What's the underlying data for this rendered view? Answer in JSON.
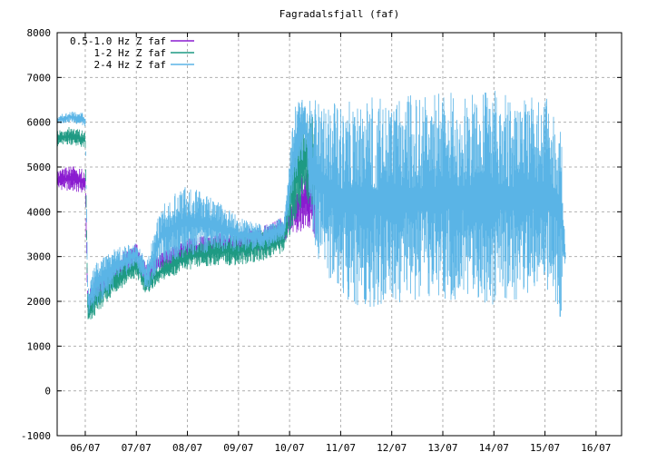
{
  "chart_data": {
    "type": "line",
    "title": "Fagradalsfjall (faf)",
    "xlabel": "",
    "ylabel": "",
    "x_ticks": [
      "06/07",
      "07/07",
      "08/07",
      "09/07",
      "10/07",
      "11/07",
      "12/07",
      "13/07",
      "14/07",
      "15/07",
      "16/07"
    ],
    "y_ticks": [
      -1000,
      0,
      1000,
      2000,
      3000,
      4000,
      5000,
      6000,
      7000,
      8000
    ],
    "xlim": [
      -0.55,
      10.5
    ],
    "ylim": [
      -1000,
      8000
    ],
    "grid": true,
    "legend_position": "top-left",
    "series": [
      {
        "name": "0.5-1.0 Hz Z faf",
        "color": "#8a1bd0",
        "x": [
          -0.55,
          -0.3,
          0,
          0.05,
          0.2,
          0.6,
          1.0,
          1.2,
          1.5,
          2.0,
          2.5,
          3.0,
          3.5,
          3.9,
          4.1,
          4.3,
          4.5
        ],
        "lo": [
          4500,
          4450,
          4400,
          1650,
          1900,
          2500,
          2800,
          2350,
          2700,
          2900,
          3000,
          3000,
          3100,
          3300,
          3500,
          3600,
          3400
        ],
        "hi": [
          4900,
          5050,
          4950,
          2200,
          2500,
          3000,
          3300,
          2800,
          3100,
          3400,
          3500,
          3600,
          3700,
          3900,
          4600,
          5000,
          4800
        ]
      },
      {
        "name": "1-2 Hz Z faf",
        "color": "#1e9a83",
        "x": [
          -0.55,
          -0.3,
          0,
          0.05,
          0.2,
          0.6,
          1.0,
          1.2,
          1.5,
          2.0,
          2.5,
          3.0,
          3.5,
          3.9,
          4.1,
          4.3,
          4.5
        ],
        "lo": [
          5450,
          5500,
          5400,
          1400,
          1700,
          2200,
          2500,
          2150,
          2450,
          2700,
          2800,
          2800,
          2900,
          3100,
          3700,
          4200,
          4000
        ],
        "hi": [
          5800,
          5900,
          5800,
          2000,
          2300,
          2800,
          3100,
          2600,
          2900,
          3300,
          3400,
          3500,
          3600,
          3800,
          5800,
          6300,
          6100
        ]
      },
      {
        "name": "2-4 Hz Z faf",
        "color": "#5ab4e6",
        "x": [
          -0.55,
          -0.3,
          0,
          0.05,
          0.2,
          0.6,
          1.0,
          1.2,
          1.5,
          2.0,
          2.5,
          3.0,
          3.5,
          3.9,
          4.1,
          4.3,
          4.5,
          5,
          5.5,
          6,
          6.5,
          7,
          7.5,
          8,
          8.5,
          9,
          9.3,
          9.4
        ],
        "lo": [
          5950,
          6000,
          5900,
          1700,
          1850,
          2350,
          2800,
          2200,
          2800,
          3000,
          3100,
          3100,
          3150,
          3400,
          4500,
          5300,
          3000,
          2100,
          1800,
          2000,
          1900,
          2000,
          2000,
          1900,
          2000,
          2200,
          1500,
          2900
        ],
        "hi": [
          6150,
          6250,
          6200,
          2300,
          2900,
          3200,
          3300,
          2900,
          4200,
          4600,
          4300,
          3900,
          3700,
          3900,
          6500,
          6550,
          6500,
          6500,
          6550,
          6600,
          6650,
          6650,
          6700,
          6750,
          6600,
          6550,
          6500,
          3200
        ]
      }
    ]
  }
}
